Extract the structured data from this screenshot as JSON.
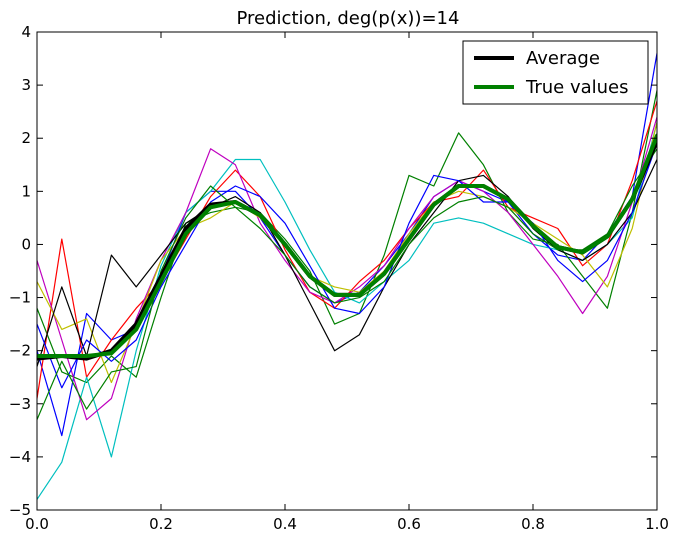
{
  "chart_data": {
    "type": "line",
    "title": "Prediction, deg(p(x))=14",
    "xlabel": "",
    "ylabel": "",
    "xlim": [
      0.0,
      1.0
    ],
    "ylim": [
      -5,
      4
    ],
    "xticks": [
      0.0,
      0.2,
      0.4,
      0.6,
      0.8,
      1.0
    ],
    "xtick_labels": [
      "0.0",
      "0.2",
      "0.4",
      "0.6",
      "0.8",
      "1.0"
    ],
    "yticks": [
      -5,
      -4,
      -3,
      -2,
      -1,
      0,
      1,
      2,
      3,
      4
    ],
    "ytick_labels": [
      "−5",
      "−4",
      "−3",
      "−2",
      "−1",
      "0",
      "1",
      "2",
      "3",
      "4"
    ],
    "grid": false,
    "legend": {
      "placement": "top-right",
      "entries": [
        {
          "label": "Average",
          "color": "#000000"
        },
        {
          "label": "True values",
          "color": "#008000"
        }
      ]
    },
    "x": [
      0.0,
      0.04,
      0.08,
      0.12,
      0.16,
      0.2,
      0.24,
      0.28,
      0.32,
      0.36,
      0.4,
      0.44,
      0.48,
      0.52,
      0.56,
      0.6,
      0.64,
      0.68,
      0.72,
      0.76,
      0.8,
      0.84,
      0.88,
      0.92,
      0.96,
      1.0
    ],
    "series": [
      {
        "name": "Average",
        "color": "#000000",
        "width": 4,
        "values": [
          -2.15,
          -2.1,
          -2.15,
          -2.0,
          -1.5,
          -0.6,
          0.3,
          0.75,
          0.8,
          0.55,
          0.0,
          -0.6,
          -0.95,
          -0.95,
          -0.55,
          0.1,
          0.75,
          1.1,
          1.1,
          0.85,
          0.35,
          -0.05,
          -0.15,
          0.15,
          0.85,
          1.95
        ]
      },
      {
        "name": "True values",
        "color": "#008000",
        "width": 4,
        "values": [
          -2.1,
          -2.1,
          -2.1,
          -2.05,
          -1.6,
          -0.7,
          0.2,
          0.7,
          0.8,
          0.55,
          0.0,
          -0.6,
          -0.95,
          -0.95,
          -0.55,
          0.1,
          0.75,
          1.1,
          1.1,
          0.85,
          0.35,
          -0.05,
          -0.15,
          0.15,
          0.85,
          2.05
        ]
      }
    ],
    "sample_series_colors": [
      "#0000ff",
      "#008000",
      "#ff0000",
      "#00bfbf",
      "#bf00bf",
      "#bfbf00",
      "#000000"
    ],
    "sample_series": [
      [
        -2.0,
        -3.6,
        -1.3,
        -1.8,
        -1.6,
        -0.6,
        0.6,
        1.0,
        1.0,
        0.5,
        -0.2,
        -0.8,
        -1.1,
        -0.9,
        -0.4,
        0.2,
        0.9,
        1.2,
        1.0,
        0.8,
        0.2,
        -0.2,
        -0.3,
        0.2,
        0.9,
        3.6
      ],
      [
        -1.2,
        -2.4,
        -2.6,
        -2.1,
        -2.5,
        -1.0,
        0.4,
        0.6,
        0.7,
        0.6,
        0.1,
        -0.5,
        -1.5,
        -1.3,
        -0.2,
        1.3,
        1.1,
        2.1,
        1.5,
        0.6,
        0.1,
        0.0,
        -0.6,
        -1.2,
        0.6,
        2.9
      ],
      [
        -2.9,
        0.1,
        -2.5,
        -1.8,
        -1.2,
        -0.7,
        0.1,
        0.9,
        1.4,
        0.9,
        -0.1,
        -0.9,
        -1.2,
        -0.7,
        -0.3,
        0.3,
        0.8,
        0.9,
        1.4,
        0.7,
        0.5,
        0.3,
        -0.4,
        0.0,
        1.2,
        2.7
      ],
      [
        -4.8,
        -4.1,
        -2.5,
        -4.0,
        -2.0,
        -0.4,
        0.6,
        1.0,
        1.6,
        1.6,
        0.8,
        -0.1,
        -0.9,
        -1.1,
        -0.7,
        -0.3,
        0.4,
        0.5,
        0.4,
        0.2,
        0.0,
        -0.1,
        -0.3,
        0.0,
        0.5,
        2.3
      ],
      [
        -0.3,
        -1.8,
        -3.3,
        -2.9,
        -1.4,
        -0.3,
        0.6,
        1.8,
        1.5,
        0.4,
        -0.3,
        -0.9,
        -1.1,
        -0.8,
        -0.4,
        0.3,
        0.9,
        1.2,
        1.0,
        0.6,
        0.0,
        -0.6,
        -1.3,
        -0.6,
        0.8,
        2.4
      ],
      [
        -0.7,
        -1.6,
        -1.4,
        -2.6,
        -1.5,
        -0.3,
        0.3,
        0.5,
        0.8,
        0.5,
        0.0,
        -0.6,
        -0.8,
        -0.9,
        -0.5,
        0.2,
        0.8,
        1.0,
        0.9,
        0.7,
        0.4,
        0.1,
        -0.2,
        -0.8,
        0.3,
        2.3
      ],
      [
        -2.3,
        -0.8,
        -2.1,
        -0.2,
        -0.8,
        -0.2,
        0.4,
        0.7,
        0.9,
        0.6,
        -0.2,
        -1.1,
        -2.0,
        -1.7,
        -0.8,
        0.0,
        0.6,
        1.2,
        1.3,
        0.9,
        0.3,
        -0.1,
        -0.3,
        0.0,
        0.6,
        1.6
      ],
      [
        -1.5,
        -2.7,
        -1.8,
        -2.2,
        -1.8,
        -0.8,
        0.0,
        0.8,
        1.1,
        0.9,
        0.4,
        -0.4,
        -1.2,
        -1.3,
        -0.8,
        0.4,
        1.3,
        1.2,
        0.8,
        0.8,
        0.4,
        -0.3,
        -0.7,
        -0.3,
        0.6,
        1.9
      ],
      [
        -3.3,
        -2.2,
        -3.1,
        -2.4,
        -2.3,
        -0.5,
        0.5,
        1.1,
        0.7,
        0.3,
        -0.2,
        -0.8,
        -1.1,
        -1.0,
        -0.7,
        0.0,
        0.5,
        0.8,
        0.9,
        0.7,
        0.2,
        -0.1,
        -0.1,
        0.2,
        1.1,
        1.8
      ]
    ]
  }
}
